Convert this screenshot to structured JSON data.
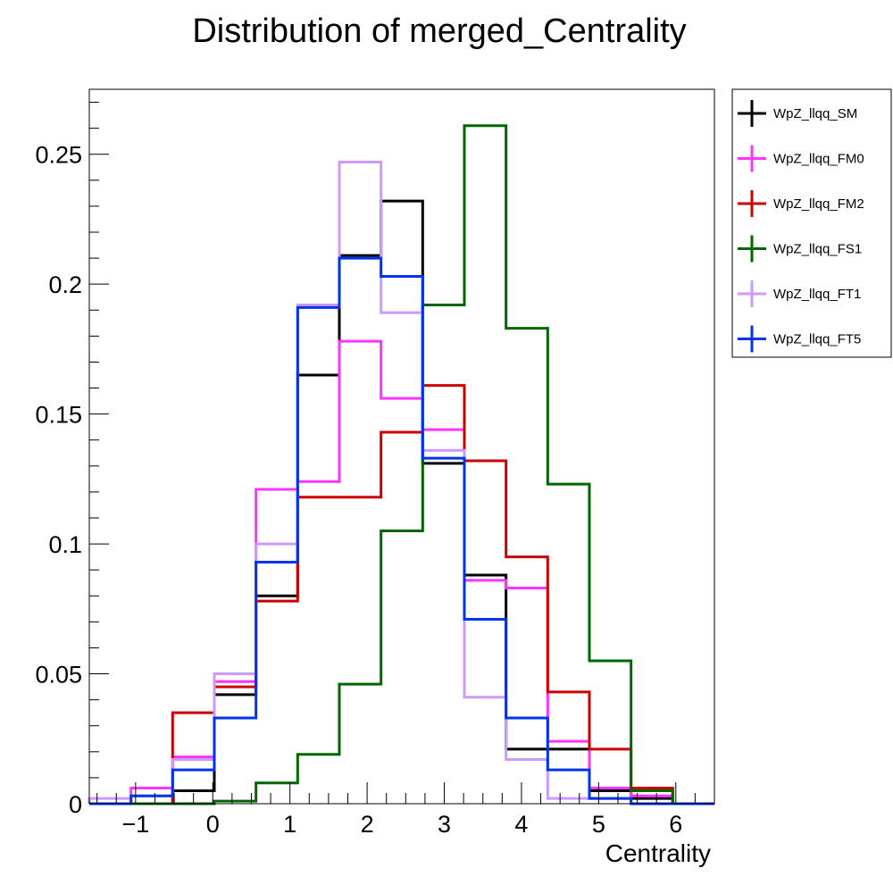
{
  "chart_data": {
    "type": "line",
    "title": "Distribution of merged_Centrality",
    "xlabel": "Centrality",
    "ylabel": "",
    "xlim": [
      -1.6,
      6.5
    ],
    "ylim": [
      0,
      0.275
    ],
    "x_ticks": [
      -1,
      0,
      1,
      2,
      3,
      4,
      5,
      6
    ],
    "x_tick_labels": [
      "−1",
      "0",
      "1",
      "2",
      "3",
      "4",
      "5",
      "6"
    ],
    "y_ticks": [
      0,
      0.05,
      0.1,
      0.15,
      0.2,
      0.25
    ],
    "y_tick_labels": [
      "0",
      "0.05",
      "0.1",
      "0.15",
      "0.2",
      "0.25"
    ],
    "legend_position": "outside-top-right",
    "grid": false,
    "bin_edges": [
      -1.6,
      -1.06,
      -0.52,
      0.02,
      0.56,
      1.1,
      1.64,
      2.18,
      2.72,
      3.26,
      3.8,
      4.34,
      4.88,
      5.42,
      5.96,
      6.5
    ],
    "series": [
      {
        "name": "WpZ_llqq_SM",
        "color": "#000000",
        "values": [
          0,
          0,
          0.005,
          0.042,
          0.08,
          0.165,
          0.211,
          0.232,
          0.131,
          0.088,
          0.021,
          0.021,
          0.005,
          0.002,
          0
        ]
      },
      {
        "name": "WpZ_llqq_FM0",
        "color": "#ff33ff",
        "values": [
          0,
          0.006,
          0.018,
          0.047,
          0.121,
          0.124,
          0.178,
          0.156,
          0.144,
          0.086,
          0.083,
          0.024,
          0.006,
          0.003,
          0
        ]
      },
      {
        "name": "WpZ_llqq_FM2",
        "color": "#cc0000",
        "values": [
          0,
          0,
          0.035,
          0.045,
          0.078,
          0.118,
          0.118,
          0.143,
          0.161,
          0.132,
          0.095,
          0.043,
          0.021,
          0.006,
          0
        ]
      },
      {
        "name": "WpZ_llqq_FS1",
        "color": "#006600",
        "values": [
          0,
          0,
          0,
          0.001,
          0.008,
          0.019,
          0.046,
          0.105,
          0.192,
          0.261,
          0.183,
          0.123,
          0.055,
          0.005,
          0
        ]
      },
      {
        "name": "WpZ_llqq_FT1",
        "color": "#cc99ff",
        "values": [
          0.002,
          0.003,
          0.017,
          0.05,
          0.1,
          0.192,
          0.247,
          0.189,
          0.136,
          0.041,
          0.017,
          0.002,
          0.002,
          0,
          0
        ]
      },
      {
        "name": "WpZ_llqq_FT5",
        "color": "#0033ee",
        "values": [
          0,
          0.003,
          0.013,
          0.033,
          0.093,
          0.191,
          0.21,
          0.203,
          0.133,
          0.071,
          0.033,
          0.013,
          0.002,
          0,
          0
        ]
      }
    ]
  }
}
